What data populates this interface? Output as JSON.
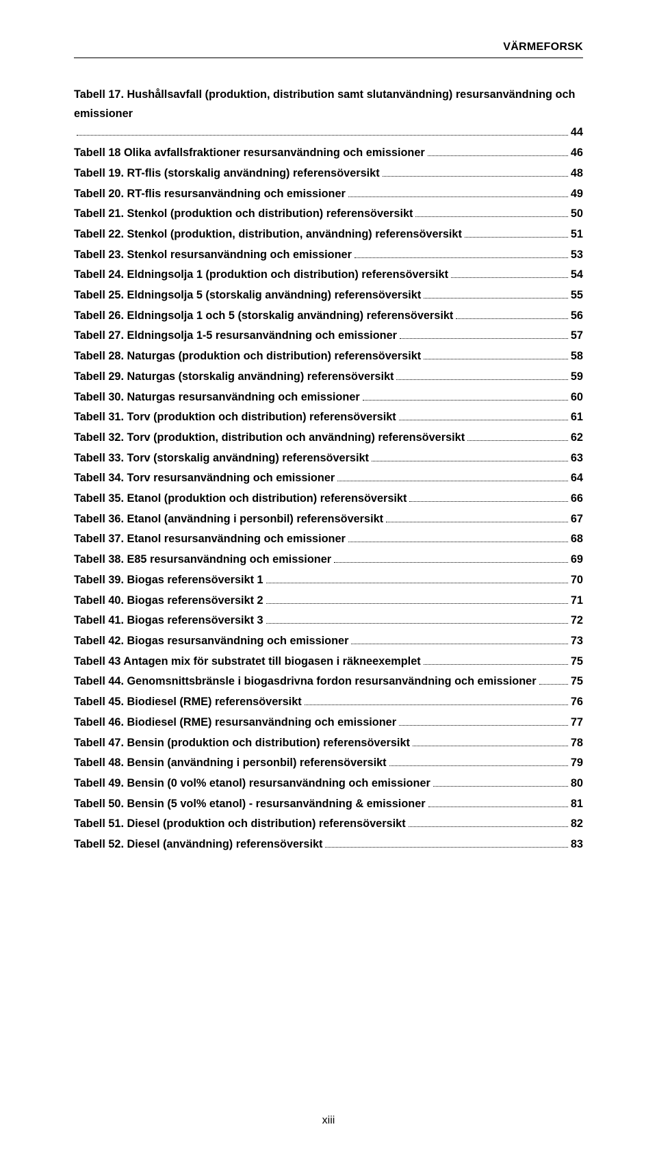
{
  "header": {
    "brand": "VÄRMEFORSK"
  },
  "page_number": "xiii",
  "toc": [
    {
      "label": "Tabell 17. Hushållsavfall (produktion, distribution samt slutanvändning) resursanvändning och emissioner",
      "page": "44"
    },
    {
      "label": "Tabell 18 Olika avfallsfraktioner resursanvändning och emissioner",
      "page": "46"
    },
    {
      "label": "Tabell 19. RT-flis (storskalig användning) referensöversikt",
      "page": "48"
    },
    {
      "label": "Tabell 20. RT-flis resursanvändning och emissioner",
      "page": "49"
    },
    {
      "label": "Tabell 21. Stenkol (produktion och distribution) referensöversikt",
      "page": "50"
    },
    {
      "label": "Tabell 22. Stenkol (produktion, distribution, användning) referensöversikt",
      "page": "51"
    },
    {
      "label": "Tabell 23. Stenkol resursanvändning och emissioner",
      "page": "53"
    },
    {
      "label": "Tabell 24. Eldningsolja 1 (produktion och distribution) referensöversikt",
      "page": "54"
    },
    {
      "label": "Tabell 25. Eldningsolja 5 (storskalig användning) referensöversikt",
      "page": "55"
    },
    {
      "label": "Tabell 26. Eldningsolja 1 och 5 (storskalig användning) referensöversikt",
      "page": "56"
    },
    {
      "label": "Tabell 27. Eldningsolja 1-5 resursanvändning och emissioner",
      "page": "57"
    },
    {
      "label": "Tabell 28. Naturgas (produktion och distribution) referensöversikt",
      "page": "58"
    },
    {
      "label": "Tabell 29. Naturgas (storskalig användning) referensöversikt",
      "page": "59"
    },
    {
      "label": "Tabell 30. Naturgas resursanvändning och emissioner",
      "page": "60"
    },
    {
      "label": "Tabell 31. Torv (produktion och distribution) referensöversikt",
      "page": "61"
    },
    {
      "label": "Tabell 32. Torv (produktion, distribution och användning) referensöversikt",
      "page": "62"
    },
    {
      "label": "Tabell 33. Torv (storskalig användning) referensöversikt",
      "page": "63"
    },
    {
      "label": "Tabell 34. Torv resursanvändning och emissioner",
      "page": "64"
    },
    {
      "label": "Tabell 35. Etanol (produktion och distribution) referensöversikt",
      "page": "66"
    },
    {
      "label": "Tabell 36. Etanol (användning i personbil) referensöversikt",
      "page": "67"
    },
    {
      "label": "Tabell 37. Etanol resursanvändning och emissioner",
      "page": "68"
    },
    {
      "label": "Tabell 38. E85 resursanvändning och emissioner",
      "page": "69"
    },
    {
      "label": "Tabell 39. Biogas referensöversikt 1",
      "page": "70"
    },
    {
      "label": "Tabell 40. Biogas referensöversikt 2",
      "page": "71"
    },
    {
      "label": "Tabell 41. Biogas referensöversikt 3",
      "page": "72"
    },
    {
      "label": "Tabell 42. Biogas resursanvändning och emissioner",
      "page": "73"
    },
    {
      "label": "Tabell 43 Antagen mix för substratet till biogasen i räkneexemplet",
      "page": "75"
    },
    {
      "label": "Tabell 44. Genomsnittsbränsle i biogasdrivna fordon resursanvändning och emissioner",
      "page": "75"
    },
    {
      "label": "Tabell 45. Biodiesel (RME) referensöversikt",
      "page": "76"
    },
    {
      "label": "Tabell 46. Biodiesel (RME) resursanvändning och emissioner",
      "page": "77"
    },
    {
      "label": "Tabell 47. Bensin (produktion och distribution) referensöversikt",
      "page": "78"
    },
    {
      "label": "Tabell 48. Bensin (användning i personbil) referensöversikt",
      "page": "79"
    },
    {
      "label": "Tabell 49. Bensin (0 vol% etanol) resursanvändning och emissioner",
      "page": "80"
    },
    {
      "label": "Tabell 50. Bensin (5 vol% etanol) - resursanvändning & emissioner",
      "page": "81"
    },
    {
      "label": "Tabell 51. Diesel (produktion och distribution) referensöversikt",
      "page": "82"
    },
    {
      "label": "Tabell 52. Diesel (användning) referensöversikt",
      "page": "83"
    }
  ]
}
